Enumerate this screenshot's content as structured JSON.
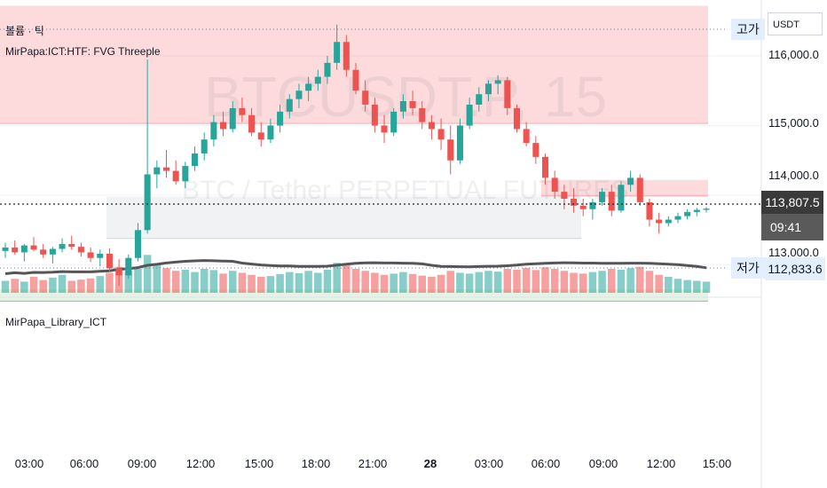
{
  "indicators": {
    "volume_label": "볼륨 · 틱",
    "fvg_label": "MirPapa:ICT:HTF: FVG Threeple",
    "library_label": "MirPapa_Library_ICT"
  },
  "watermark": {
    "symbol": "BTCUSDT.P, 15",
    "description": "BTC / Tether PERPETUAL FUTURES"
  },
  "price_axis": {
    "currency": "USDT",
    "ticks": [
      "116,000.0",
      "115,000.0",
      "114,000.0",
      "113,000.0"
    ],
    "current_price": "113,807.5",
    "countdown": "09:41",
    "low_price": "112,833.6"
  },
  "tags": {
    "high": "고가",
    "low": "저가"
  },
  "time_axis": {
    "ticks": [
      {
        "label": "03:00",
        "bold": false
      },
      {
        "label": "06:00",
        "bold": false
      },
      {
        "label": "09:00",
        "bold": false
      },
      {
        "label": "12:00",
        "bold": false
      },
      {
        "label": "15:00",
        "bold": false
      },
      {
        "label": "18:00",
        "bold": false
      },
      {
        "label": "21:00",
        "bold": false
      },
      {
        "label": "28",
        "bold": true
      },
      {
        "label": "03:00",
        "bold": false
      },
      {
        "label": "06:00",
        "bold": false
      },
      {
        "label": "09:00",
        "bold": false
      },
      {
        "label": "12:00",
        "bold": false
      },
      {
        "label": "15:00",
        "bold": false
      }
    ]
  },
  "chart_data": {
    "type": "candlestick",
    "y_range": [
      112600,
      116700
    ],
    "high": 116450,
    "low": 112833.6,
    "current": 113807.5,
    "up_color": "#26a69a",
    "down_color": "#ef5350",
    "fvg_zones": [
      {
        "from": 115030,
        "to": 116720,
        "kind": "bearish"
      },
      {
        "from": 113990,
        "to": 114220,
        "kind": "bearish"
      },
      {
        "from": 113380,
        "to": 113980,
        "kind": "neutral"
      },
      {
        "from": 112480,
        "to": 112650,
        "kind": "bullish"
      }
    ],
    "candles": [
      [
        113200,
        113320,
        113100,
        113250
      ],
      [
        113250,
        113350,
        113150,
        113180
      ],
      [
        113180,
        113300,
        113050,
        113280
      ],
      [
        113280,
        113400,
        113200,
        113220
      ],
      [
        113220,
        113300,
        113100,
        113150
      ],
      [
        113150,
        113260,
        113020,
        113230
      ],
      [
        113230,
        113380,
        113180,
        113300
      ],
      [
        113300,
        113420,
        113220,
        113260
      ],
      [
        113260,
        113320,
        113120,
        113180
      ],
      [
        113180,
        113250,
        113040,
        113100
      ],
      [
        113100,
        113220,
        112980,
        113160
      ],
      [
        113160,
        113240,
        112900,
        112950
      ],
      [
        112950,
        113080,
        112700,
        112850
      ],
      [
        112850,
        113150,
        112800,
        113100
      ],
      [
        113100,
        113600,
        113050,
        113500
      ],
      [
        113500,
        115950,
        113450,
        114300
      ],
      [
        114300,
        114500,
        114100,
        114400
      ],
      [
        114400,
        114650,
        114250,
        114350
      ],
      [
        114350,
        114500,
        114150,
        114200
      ],
      [
        114200,
        114480,
        114100,
        114420
      ],
      [
        114420,
        114700,
        114350,
        114600
      ],
      [
        114600,
        114900,
        114500,
        114800
      ],
      [
        114800,
        115150,
        114700,
        115050
      ],
      [
        115050,
        115200,
        114850,
        114950
      ],
      [
        114950,
        115350,
        114900,
        115250
      ],
      [
        115250,
        115400,
        115050,
        115150
      ],
      [
        115150,
        115250,
        114850,
        114900
      ],
      [
        114900,
        115050,
        114700,
        114800
      ],
      [
        114800,
        115100,
        114750,
        115000
      ],
      [
        115000,
        115300,
        114900,
        115200
      ],
      [
        115200,
        115450,
        115100,
        115380
      ],
      [
        115380,
        115600,
        115250,
        115500
      ],
      [
        115500,
        115700,
        115350,
        115600
      ],
      [
        115600,
        115800,
        115500,
        115700
      ],
      [
        115700,
        116000,
        115600,
        115900
      ],
      [
        115900,
        116450,
        115800,
        116200
      ],
      [
        116200,
        116300,
        115700,
        115800
      ],
      [
        115800,
        115900,
        115450,
        115500
      ],
      [
        115500,
        115650,
        115200,
        115300
      ],
      [
        115300,
        115400,
        114900,
        115000
      ],
      [
        115000,
        115150,
        114750,
        114900
      ],
      [
        114900,
        115250,
        114850,
        115200
      ],
      [
        115200,
        115450,
        115100,
        115350
      ],
      [
        115350,
        115500,
        115150,
        115250
      ],
      [
        115250,
        115350,
        114950,
        115050
      ],
      [
        115050,
        115150,
        114800,
        114950
      ],
      [
        114950,
        115100,
        114650,
        114800
      ],
      [
        114800,
        115000,
        114300,
        114500
      ],
      [
        114500,
        115100,
        114450,
        115000
      ],
      [
        115000,
        115400,
        114950,
        115300
      ],
      [
        115300,
        115550,
        115200,
        115450
      ],
      [
        115450,
        115650,
        115350,
        115600
      ],
      [
        115600,
        115720,
        115450,
        115650
      ],
      [
        115650,
        115700,
        115150,
        115250
      ],
      [
        115250,
        115300,
        114900,
        114950
      ],
      [
        114950,
        115050,
        114700,
        114750
      ],
      [
        114750,
        114850,
        114450,
        114550
      ],
      [
        114550,
        114600,
        114150,
        114250
      ],
      [
        114250,
        114350,
        113950,
        114050
      ],
      [
        114050,
        114150,
        113800,
        113950
      ],
      [
        113950,
        114100,
        113750,
        113850
      ],
      [
        113850,
        113950,
        113700,
        113800
      ],
      [
        113800,
        113950,
        113650,
        113900
      ],
      [
        113900,
        114100,
        113850,
        114050
      ],
      [
        114050,
        114150,
        113700,
        113780
      ],
      [
        113780,
        114200,
        113750,
        114150
      ],
      [
        114150,
        114350,
        114050,
        114250
      ],
      [
        114250,
        114300,
        113850,
        113900
      ],
      [
        113900,
        113950,
        113550,
        113650
      ],
      [
        113650,
        113750,
        113450,
        113600
      ],
      [
        113600,
        113700,
        113550,
        113650
      ],
      [
        113650,
        113750,
        113600,
        113700
      ],
      [
        113700,
        113800,
        113650,
        113760
      ],
      [
        113760,
        113820,
        113700,
        113790
      ],
      [
        113790,
        113830,
        113750,
        113808
      ]
    ],
    "volumes": [
      30,
      35,
      28,
      40,
      32,
      38,
      45,
      30,
      33,
      36,
      42,
      50,
      65,
      55,
      60,
      95,
      70,
      62,
      55,
      58,
      52,
      60,
      57,
      48,
      55,
      50,
      45,
      40,
      42,
      47,
      52,
      49,
      55,
      50,
      58,
      75,
      72,
      60,
      55,
      50,
      45,
      48,
      52,
      47,
      43,
      40,
      45,
      55,
      50,
      48,
      52,
      55,
      53,
      60,
      58,
      62,
      57,
      64,
      60,
      55,
      50,
      48,
      52,
      55,
      60,
      58,
      62,
      65,
      55,
      45,
      40,
      35,
      32,
      30,
      28
    ]
  }
}
